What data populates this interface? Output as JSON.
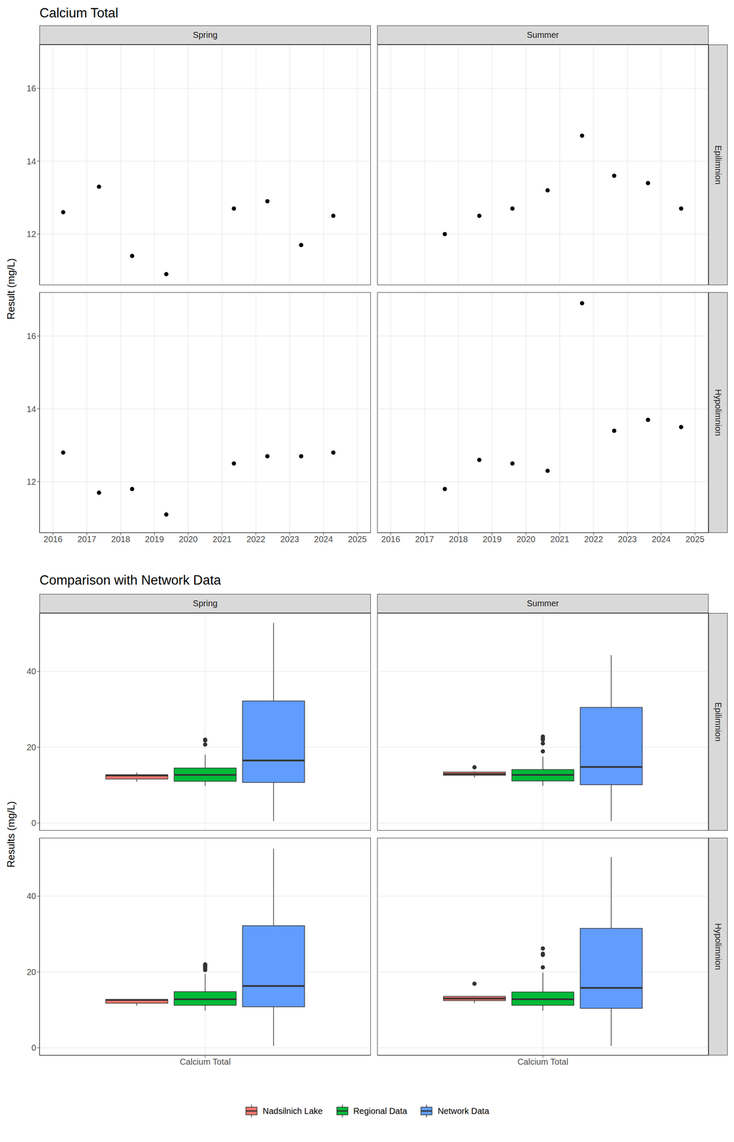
{
  "chart_data": [
    {
      "type": "scatter",
      "title": "Calcium Total",
      "ylabel": "Result (mg/L)",
      "columns": [
        "Spring",
        "Summer"
      ],
      "rows": [
        "Epilimnion",
        "Hypolimnion"
      ],
      "xlim": [
        2015.6,
        2025.4
      ],
      "xticks": [
        2016,
        2017,
        2018,
        2019,
        2020,
        2021,
        2022,
        2023,
        2024,
        2025
      ],
      "ylim": [
        10.6,
        17.2
      ],
      "yticks": [
        12,
        14,
        16
      ],
      "grid": true,
      "color": "#000000",
      "marker": "circle",
      "panels": [
        {
          "column": "Spring",
          "row": "Epilimnion",
          "x": [
            2016.3,
            2017.36,
            2018.34,
            2019.35,
            2021.35,
            2022.34,
            2023.34,
            2024.29
          ],
          "values": [
            12.6,
            13.3,
            11.4,
            10.9,
            12.7,
            12.9,
            11.7,
            12.5
          ]
        },
        {
          "column": "Summer",
          "row": "Epilimnion",
          "x": [
            2017.6,
            2018.62,
            2019.6,
            2020.64,
            2021.66,
            2022.61,
            2023.61,
            2024.59
          ],
          "values": [
            12.0,
            12.5,
            12.7,
            13.2,
            14.7,
            13.6,
            13.4,
            12.7
          ]
        },
        {
          "column": "Spring",
          "row": "Hypolimnion",
          "x": [
            2016.3,
            2017.36,
            2018.34,
            2019.35,
            2021.35,
            2022.34,
            2023.34,
            2024.29
          ],
          "values": [
            12.8,
            11.7,
            11.8,
            11.1,
            12.5,
            12.7,
            12.7,
            12.8
          ]
        },
        {
          "column": "Summer",
          "row": "Hypolimnion",
          "x": [
            2017.6,
            2018.62,
            2019.6,
            2020.64,
            2021.66,
            2022.61,
            2023.61,
            2024.59
          ],
          "values": [
            11.8,
            12.6,
            12.5,
            12.3,
            16.9,
            13.4,
            13.7,
            13.5
          ]
        }
      ]
    },
    {
      "type": "box",
      "title": "Comparison with Network Data",
      "ylabel": "Results (mg/L)",
      "columns": [
        "Spring",
        "Summer"
      ],
      "rows": [
        "Epilimnion",
        "Hypolimnion"
      ],
      "categories": [
        "Calcium Total"
      ],
      "ylim": [
        -2,
        55.4
      ],
      "yticks": [
        0,
        20,
        40
      ],
      "grid": true,
      "legend": "bottom",
      "series": [
        {
          "name": "Nadsilnich Lake",
          "color": "#F8766D",
          "panels": [
            {
              "column": "Spring",
              "row": "Epilimnion",
              "min": 10.9,
              "q1": 11.6,
              "median": 12.55,
              "q3": 12.75,
              "max": 13.3,
              "outliers": []
            },
            {
              "column": "Summer",
              "row": "Epilimnion",
              "min": 12.0,
              "q1": 12.6,
              "median": 12.95,
              "q3": 13.45,
              "max": 13.6,
              "outliers": [
                14.7
              ]
            },
            {
              "column": "Spring",
              "row": "Hypolimnion",
              "min": 11.1,
              "q1": 11.75,
              "median": 12.6,
              "q3": 12.75,
              "max": 12.8,
              "outliers": []
            },
            {
              "column": "Summer",
              "row": "Hypolimnion",
              "min": 11.8,
              "q1": 12.45,
              "median": 13.0,
              "q3": 13.55,
              "max": 13.7,
              "outliers": [
                16.9
              ]
            }
          ]
        },
        {
          "name": "Regional Data",
          "color": "#00BA38",
          "panels": [
            {
              "column": "Spring",
              "row": "Epilimnion",
              "min": 9.8,
              "q1": 11.0,
              "median": 12.7,
              "q3": 14.5,
              "max": 18.0,
              "outliers": [
                20.7,
                21.8,
                22.0
              ]
            },
            {
              "column": "Summer",
              "row": "Epilimnion",
              "min": 9.8,
              "q1": 11.1,
              "median": 12.7,
              "q3": 14.1,
              "max": 17.5,
              "outliers": [
                18.9,
                21.0,
                22.0,
                22.4,
                22.8
              ]
            },
            {
              "column": "Spring",
              "row": "Hypolimnion",
              "min": 9.8,
              "q1": 11.2,
              "median": 12.8,
              "q3": 14.8,
              "max": 19.5,
              "outliers": [
                20.5,
                21.0,
                21.5,
                21.8,
                22.0
              ]
            },
            {
              "column": "Summer",
              "row": "Hypolimnion",
              "min": 9.8,
              "q1": 11.2,
              "median": 12.8,
              "q3": 14.7,
              "max": 19.8,
              "outliers": [
                21.2,
                24.5,
                24.8,
                26.2
              ]
            }
          ]
        },
        {
          "name": "Network Data",
          "color": "#619CFF",
          "panels": [
            {
              "column": "Spring",
              "row": "Epilimnion",
              "min": 0.5,
              "q1": 10.7,
              "median": 16.5,
              "q3": 32.2,
              "max": 52.8,
              "outliers": []
            },
            {
              "column": "Summer",
              "row": "Epilimnion",
              "min": 0.5,
              "q1": 10.1,
              "median": 14.8,
              "q3": 30.5,
              "max": 44.3,
              "outliers": []
            },
            {
              "column": "Spring",
              "row": "Hypolimnion",
              "min": 0.5,
              "q1": 10.8,
              "median": 16.3,
              "q3": 32.2,
              "max": 52.5,
              "outliers": []
            },
            {
              "column": "Summer",
              "row": "Hypolimnion",
              "min": 0.5,
              "q1": 10.4,
              "median": 15.8,
              "q3": 31.5,
              "max": 50.3,
              "outliers": []
            }
          ]
        }
      ]
    }
  ]
}
